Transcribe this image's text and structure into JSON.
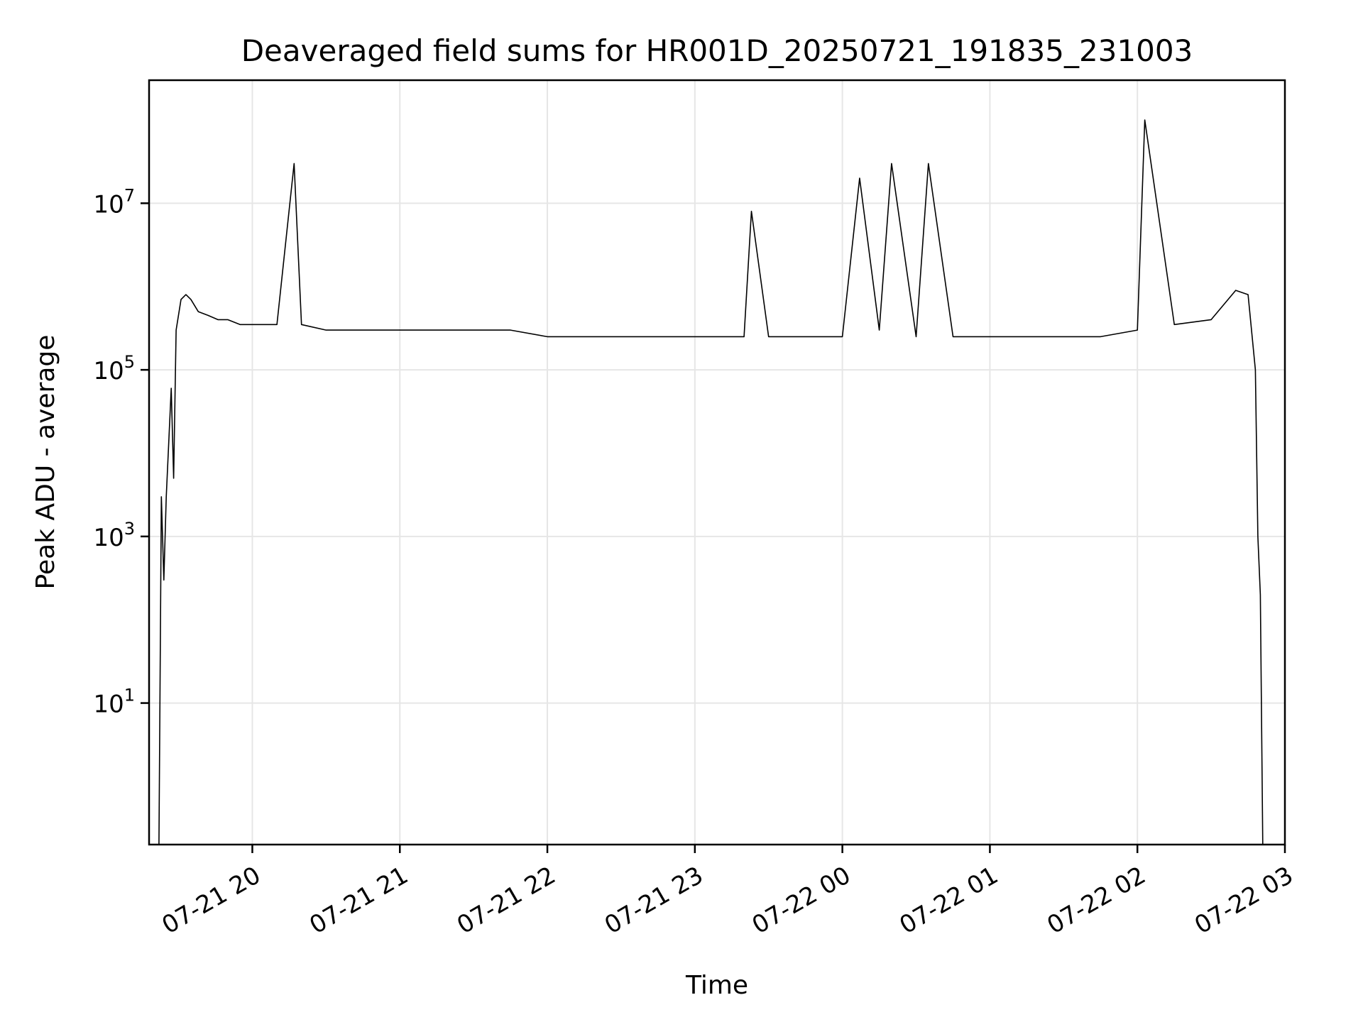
{
  "chart_data": {
    "type": "line",
    "title": "Deaveraged field sums for HR001D_20250721_191835_231003",
    "xlabel": "Time",
    "ylabel": "Peak ADU - average",
    "yscale": "log",
    "grid": true,
    "line_color": "#000000",
    "grid_color": "#e6e6e6",
    "xlim": [
      "2025-07-21 19:18",
      "2025-07-22 03:00"
    ],
    "ylim": [
      0.2,
      300000000
    ],
    "x_ticks": [
      {
        "value": "2025-07-21 20:00",
        "label": "07-21 20"
      },
      {
        "value": "2025-07-21 21:00",
        "label": "07-21 21"
      },
      {
        "value": "2025-07-21 22:00",
        "label": "07-21 22"
      },
      {
        "value": "2025-07-21 23:00",
        "label": "07-21 23"
      },
      {
        "value": "2025-07-22 00:00",
        "label": "07-22 00"
      },
      {
        "value": "2025-07-22 01:00",
        "label": "07-22 01"
      },
      {
        "value": "2025-07-22 02:00",
        "label": "07-22 02"
      },
      {
        "value": "2025-07-22 03:00",
        "label": "07-22 03"
      }
    ],
    "y_ticks": [
      {
        "value": 10,
        "base": "10",
        "exp": "1"
      },
      {
        "value": 1000,
        "base": "10",
        "exp": "3"
      },
      {
        "value": 100000,
        "base": "10",
        "exp": "5"
      },
      {
        "value": 10000000,
        "base": "10",
        "exp": "7"
      }
    ],
    "series": [
      {
        "x": [
          "2025-07-21 19:22",
          "2025-07-21 19:23",
          "2025-07-21 19:24",
          "2025-07-21 19:25",
          "2025-07-21 19:27",
          "2025-07-21 19:28",
          "2025-07-21 19:29",
          "2025-07-21 19:31",
          "2025-07-21 19:33",
          "2025-07-21 19:35",
          "2025-07-21 19:38",
          "2025-07-21 19:42",
          "2025-07-21 19:46",
          "2025-07-21 19:50",
          "2025-07-21 19:55",
          "2025-07-21 20:00",
          "2025-07-21 20:10",
          "2025-07-21 20:17",
          "2025-07-21 20:20",
          "2025-07-21 20:30",
          "2025-07-21 20:45",
          "2025-07-21 21:00",
          "2025-07-21 21:15",
          "2025-07-21 21:30",
          "2025-07-21 21:45",
          "2025-07-21 22:00",
          "2025-07-21 22:15",
          "2025-07-21 22:30",
          "2025-07-21 22:45",
          "2025-07-21 23:00",
          "2025-07-21 23:20",
          "2025-07-21 23:23",
          "2025-07-21 23:30",
          "2025-07-21 23:45",
          "2025-07-22 00:00",
          "2025-07-22 00:07",
          "2025-07-22 00:15",
          "2025-07-22 00:20",
          "2025-07-22 00:30",
          "2025-07-22 00:35",
          "2025-07-22 00:45",
          "2025-07-22 01:00",
          "2025-07-22 01:15",
          "2025-07-22 01:30",
          "2025-07-22 01:45",
          "2025-07-22 02:00",
          "2025-07-22 02:03",
          "2025-07-22 02:15",
          "2025-07-22 02:30",
          "2025-07-22 02:40",
          "2025-07-22 02:45",
          "2025-07-22 02:48",
          "2025-07-22 02:49",
          "2025-07-22 02:50",
          "2025-07-22 02:51"
        ],
        "y": [
          0.2,
          3000,
          300,
          3000,
          60000,
          5000,
          300000,
          700000,
          800000,
          700000,
          500000,
          450000,
          400000,
          400000,
          350000,
          350000,
          350000,
          30000000,
          350000,
          300000,
          300000,
          300000,
          300000,
          300000,
          300000,
          250000,
          250000,
          250000,
          250000,
          250000,
          250000,
          8000000,
          250000,
          250000,
          250000,
          20000000,
          300000,
          30000000,
          250000,
          30000000,
          250000,
          250000,
          250000,
          250000,
          250000,
          300000,
          100000000,
          350000,
          400000,
          900000,
          800000,
          100000,
          1000,
          200,
          0.2
        ]
      }
    ]
  }
}
